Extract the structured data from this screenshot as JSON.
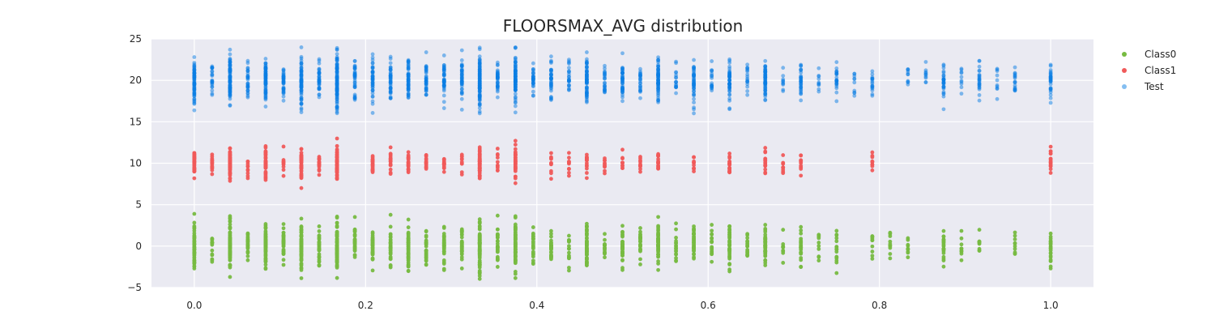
{
  "chart_data": {
    "type": "scatter",
    "title": "FLOORSMAX_AVG distribution",
    "xlabel": "",
    "ylabel": "",
    "xlim": [
      -0.05,
      1.05
    ],
    "ylim": [
      -5,
      25
    ],
    "x_ticks": [
      0.0,
      0.2,
      0.4,
      0.6,
      0.8,
      1.0
    ],
    "x_tick_labels": [
      "0.0",
      "0.2",
      "0.4",
      "0.6",
      "0.8",
      "1.0"
    ],
    "y_ticks": [
      -5,
      0,
      5,
      10,
      15,
      20,
      25
    ],
    "y_tick_labels": [
      "−5",
      "0",
      "5",
      "10",
      "15",
      "20",
      "25"
    ],
    "grid": true,
    "legend_position": "top-right outside",
    "background_color": "#eaeaf2",
    "series": [
      {
        "name": "Class0",
        "color": "#77bb41",
        "center": 0,
        "y_range": [
          -4,
          4
        ],
        "x_values": [
          0.0,
          0.0208,
          0.0417,
          0.0625,
          0.0833,
          0.1042,
          0.125,
          0.1458,
          0.1667,
          0.1875,
          0.2083,
          0.2292,
          0.25,
          0.2708,
          0.2917,
          0.3125,
          0.3333,
          0.3542,
          0.375,
          0.3958,
          0.4167,
          0.4375,
          0.4583,
          0.4792,
          0.5,
          0.5208,
          0.5417,
          0.5625,
          0.5833,
          0.6042,
          0.625,
          0.6458,
          0.6667,
          0.6875,
          0.7083,
          0.7292,
          0.75,
          0.7917,
          0.8125,
          0.8333,
          0.875,
          0.8958,
          0.9167,
          0.9583,
          1.0
        ],
        "x_weights": [
          8,
          2,
          10,
          3,
          9,
          4,
          9,
          4,
          12,
          4,
          5,
          5,
          8,
          4,
          5,
          5,
          12,
          4,
          10,
          3,
          4,
          2,
          8,
          2,
          5,
          3,
          7,
          2,
          5,
          2,
          6,
          2,
          7,
          1,
          3,
          1,
          2,
          1,
          1,
          1,
          3,
          1,
          1,
          1,
          3
        ]
      },
      {
        "name": "Class1",
        "color": "#f05a5a",
        "center": 10,
        "y_range": [
          7,
          13
        ],
        "x_values": [
          0.0,
          0.0208,
          0.0417,
          0.0625,
          0.0833,
          0.1042,
          0.125,
          0.1458,
          0.1667,
          0.2083,
          0.2292,
          0.25,
          0.2708,
          0.2917,
          0.3125,
          0.3333,
          0.3542,
          0.375,
          0.4167,
          0.4375,
          0.4583,
          0.4792,
          0.5,
          0.5208,
          0.5417,
          0.5833,
          0.625,
          0.6667,
          0.6875,
          0.7083,
          0.7917,
          1.0
        ],
        "x_weights": [
          6,
          2,
          8,
          1,
          6,
          1,
          6,
          2,
          10,
          3,
          2,
          3,
          2,
          2,
          1,
          8,
          1,
          5,
          1,
          1,
          2,
          1,
          1,
          1,
          2,
          1,
          3,
          2,
          1,
          1,
          1,
          2
        ]
      },
      {
        "name": "Test",
        "color": "#0a7ee3",
        "center": 20,
        "y_range": [
          16,
          24
        ],
        "x_values": [
          0.0,
          0.0208,
          0.0417,
          0.0625,
          0.0833,
          0.1042,
          0.125,
          0.1458,
          0.1667,
          0.1875,
          0.2083,
          0.2292,
          0.25,
          0.2708,
          0.2917,
          0.3125,
          0.3333,
          0.3542,
          0.375,
          0.3958,
          0.4167,
          0.4375,
          0.4583,
          0.4792,
          0.5,
          0.5208,
          0.5417,
          0.5625,
          0.5833,
          0.6042,
          0.625,
          0.6458,
          0.6667,
          0.6875,
          0.7083,
          0.7292,
          0.75,
          0.7708,
          0.7917,
          0.8333,
          0.8542,
          0.875,
          0.8958,
          0.9167,
          0.9375,
          0.9583,
          1.0
        ],
        "x_weights": [
          10,
          3,
          12,
          4,
          10,
          5,
          10,
          5,
          14,
          5,
          6,
          6,
          8,
          5,
          6,
          6,
          14,
          5,
          12,
          4,
          5,
          3,
          9,
          3,
          6,
          3,
          9,
          2,
          6,
          2,
          7,
          2,
          8,
          1,
          4,
          1,
          3,
          1,
          2,
          1,
          1,
          4,
          1,
          3,
          1,
          2,
          4
        ]
      }
    ]
  }
}
